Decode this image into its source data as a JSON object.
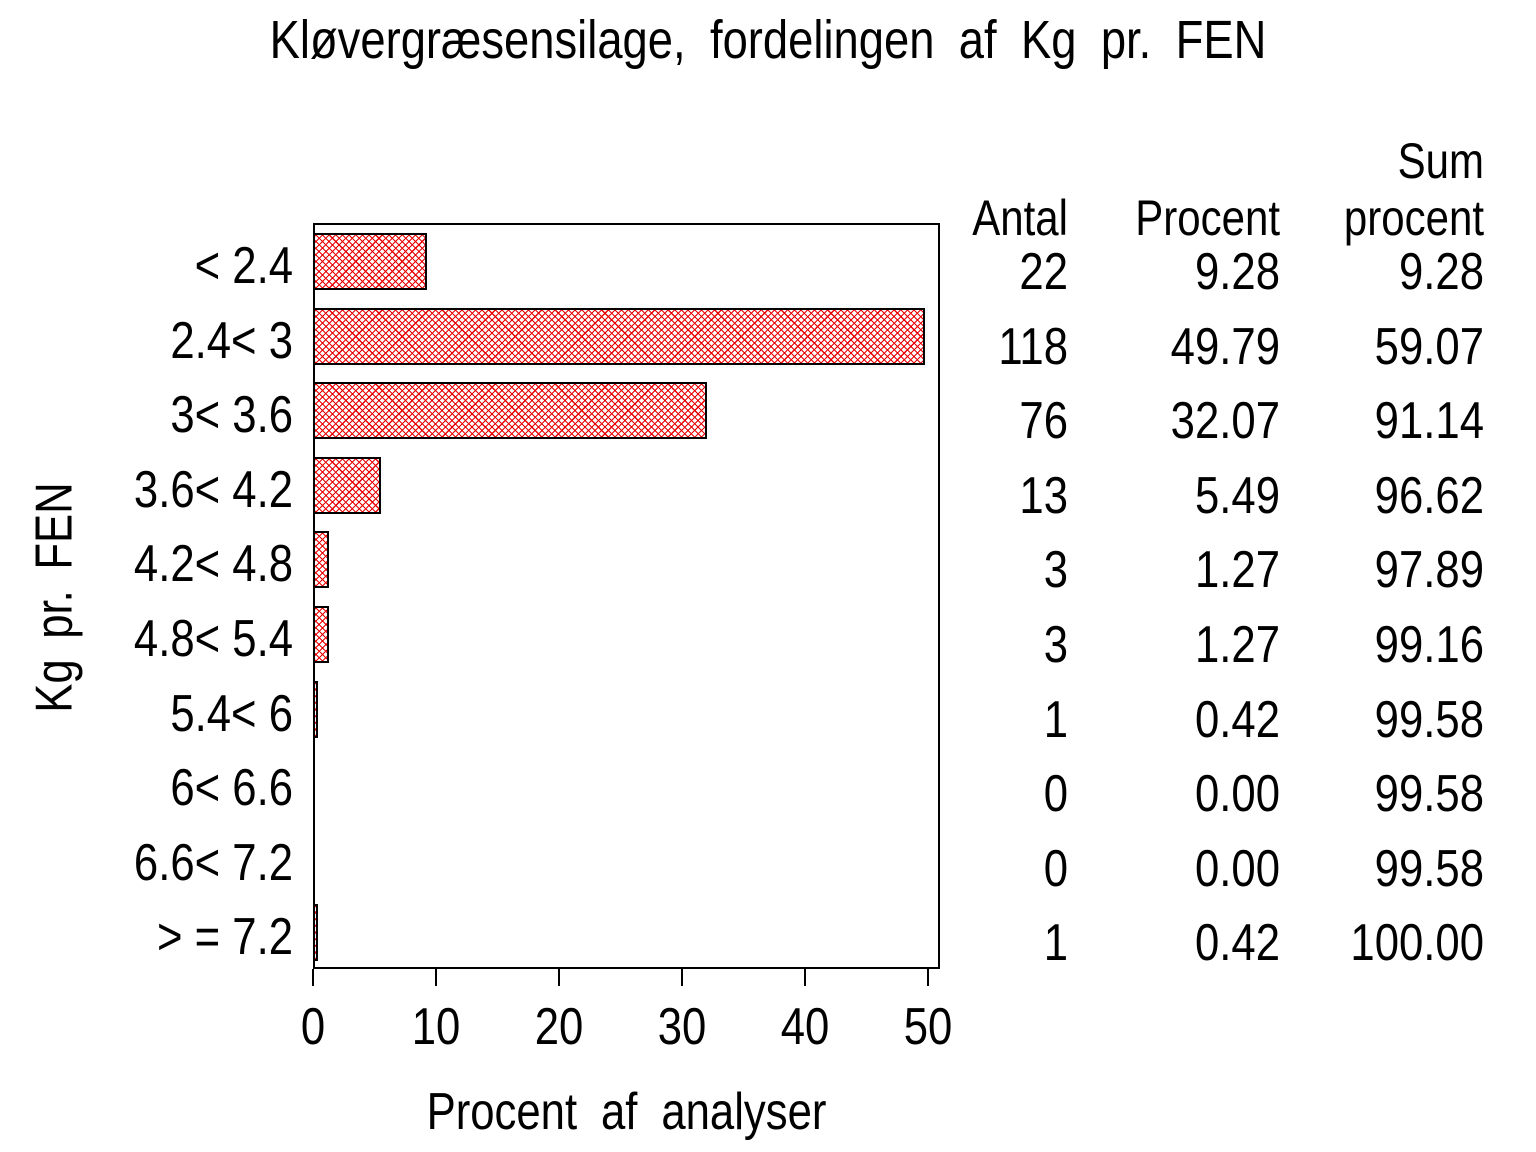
{
  "chart_data": {
    "type": "bar",
    "orientation": "horizontal",
    "title": "Kløvergræsensilage, fordelingen af Kg pr. FEN",
    "xlabel": "Procent af analyser",
    "ylabel": "Kg pr. FEN",
    "xlim": [
      0,
      51
    ],
    "xticks": [
      0,
      10,
      20,
      30,
      40,
      50
    ],
    "grid": false,
    "legend": "none",
    "bar_style": {
      "fill_pattern": "crosshatch",
      "pattern_color": "#e80000",
      "border_color": "#000000",
      "background": "#ffffff"
    },
    "categories": [
      "< 2.4",
      "2.4< 3",
      "3< 3.6",
      "3.6< 4.2",
      "4.2< 4.8",
      "4.8< 5.4",
      "5.4< 6",
      "6< 6.6",
      "6.6< 7.2",
      "> = 7.2"
    ],
    "values": [
      9.28,
      49.79,
      32.07,
      5.49,
      1.27,
      1.27,
      0.42,
      0.0,
      0.0,
      0.42
    ],
    "table": {
      "headers": {
        "antal": "Antal",
        "procent": "Procent",
        "sum_line1": "Sum",
        "sum_line2": "procent"
      },
      "rows": [
        [
          "22",
          "9.28",
          "9.28"
        ],
        [
          "118",
          "49.79",
          "59.07"
        ],
        [
          "76",
          "32.07",
          "91.14"
        ],
        [
          "13",
          "5.49",
          "96.62"
        ],
        [
          "3",
          "1.27",
          "97.89"
        ],
        [
          "3",
          "1.27",
          "99.16"
        ],
        [
          "1",
          "0.42",
          "99.58"
        ],
        [
          "0",
          "0.00",
          "99.58"
        ],
        [
          "0",
          "0.00",
          "99.58"
        ],
        [
          "1",
          "0.42",
          "100.00"
        ]
      ]
    }
  }
}
